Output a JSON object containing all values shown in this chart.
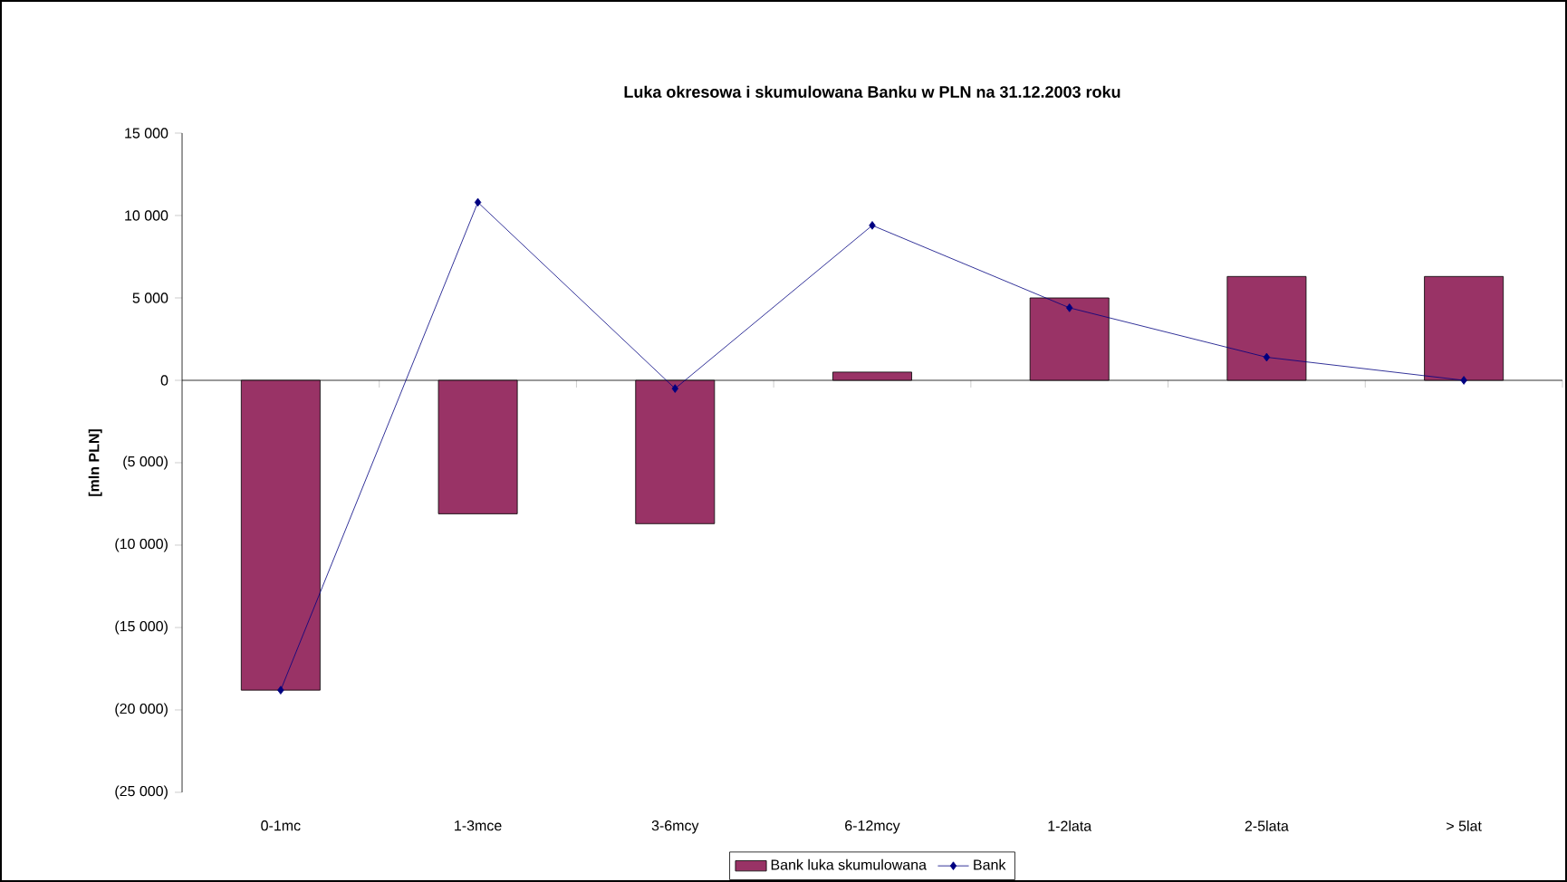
{
  "chart_data": {
    "type": "bar",
    "title": "Luka okresowa i skumulowana Banku w PLN na 31.12.2003 roku",
    "ylabel": "[mln PLN]",
    "categories": [
      "0-1mc",
      "1-3mce",
      "3-6mcy",
      "6-12mcy",
      "1-2lata",
      "2-5lata",
      "> 5lat"
    ],
    "series": [
      {
        "name": "Bank luka skumulowana",
        "color": "#993366",
        "values": [
          -18800,
          -8100,
          -8700,
          500,
          5000,
          6300,
          6300
        ]
      },
      {
        "name": "Bank",
        "type": "line",
        "color": "#000080",
        "marker": "diamond",
        "values": [
          -18800,
          10800,
          -500,
          9400,
          4400,
          1400,
          0
        ]
      }
    ],
    "ylim": [
      -25000,
      15000
    ],
    "yticks": [
      {
        "value": -25000,
        "label": "(25 000)"
      },
      {
        "value": -20000,
        "label": "(20 000)"
      },
      {
        "value": -15000,
        "label": "(15 000)"
      },
      {
        "value": -10000,
        "label": "(10 000)"
      },
      {
        "value": -5000,
        "label": "(5 000)"
      },
      0,
      {
        "value": 5000,
        "label": "5 000"
      },
      {
        "value": 10000,
        "label": "10 000"
      },
      {
        "value": 15000,
        "label": "15 000"
      }
    ],
    "legend": "bottom"
  }
}
